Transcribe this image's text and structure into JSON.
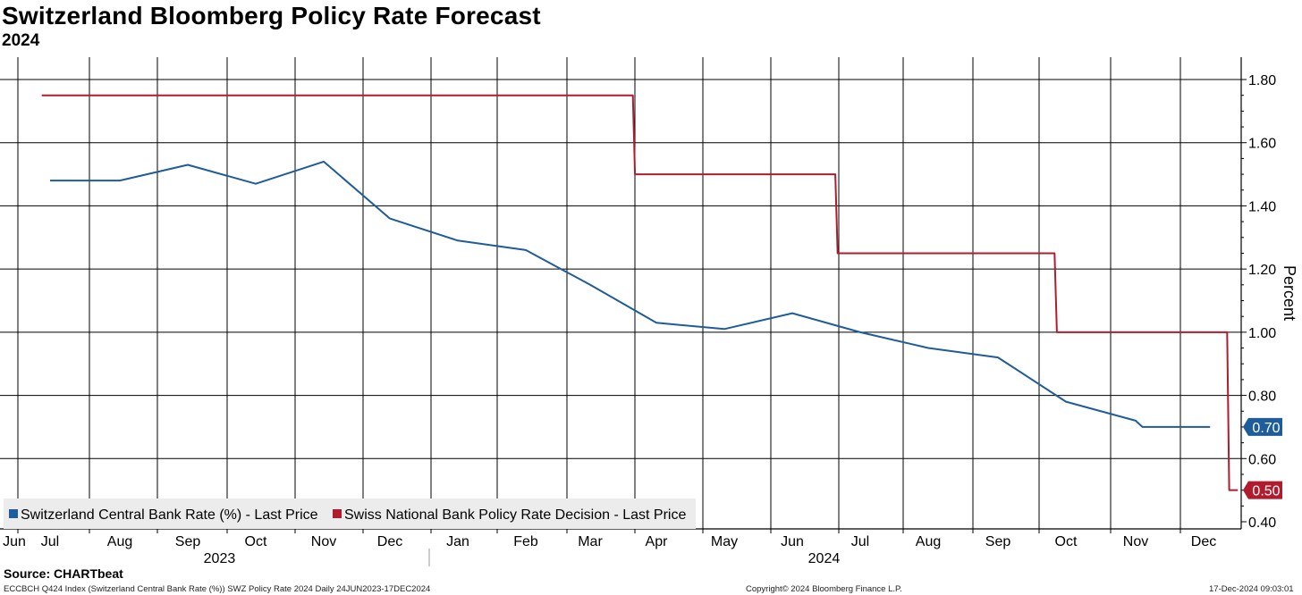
{
  "header": {
    "title": "Switzerland Bloomberg Policy Rate Forecast",
    "subtitle": "2024"
  },
  "footer": {
    "source": "Source: CHARTbeat",
    "index_info": "ECCBCH Q424 Index (Switzerland Central Bank Rate (%)) SWZ Policy Rate 2024  Daily 24JUN2023-17DEC2024",
    "copyright": "Copyright© 2024 Bloomberg Finance L.P.",
    "timestamp": "17-Dec-2024 09:03:01"
  },
  "chart_data": {
    "type": "line",
    "title": "Switzerland Bloomberg Policy Rate Forecast",
    "subtitle": "2024",
    "ylabel": "Percent",
    "ylim": [
      0.4,
      1.85
    ],
    "yticks": [
      "1.80",
      "1.60",
      "1.40",
      "1.20",
      "1.00",
      "0.80",
      "0.60",
      "0.40"
    ],
    "x_range": [
      "2023-06-24",
      "2024-12-17"
    ],
    "x_month_labels": [
      {
        "label": "Jun",
        "date": "2023-06-01"
      },
      {
        "label": "Jul",
        "date": "2023-07-01"
      },
      {
        "label": "Aug",
        "date": "2023-08-01"
      },
      {
        "label": "Sep",
        "date": "2023-09-01"
      },
      {
        "label": "Oct",
        "date": "2023-10-01"
      },
      {
        "label": "Nov",
        "date": "2023-11-01"
      },
      {
        "label": "Dec",
        "date": "2023-12-01"
      },
      {
        "label": "Jan",
        "date": "2024-01-01"
      },
      {
        "label": "Feb",
        "date": "2024-02-01"
      },
      {
        "label": "Mar",
        "date": "2024-03-01"
      },
      {
        "label": "Apr",
        "date": "2024-04-01"
      },
      {
        "label": "May",
        "date": "2024-05-01"
      },
      {
        "label": "Jun",
        "date": "2024-06-01"
      },
      {
        "label": "Jul",
        "date": "2024-07-01"
      },
      {
        "label": "Aug",
        "date": "2024-08-01"
      },
      {
        "label": "Sep",
        "date": "2024-09-01"
      },
      {
        "label": "Oct",
        "date": "2024-10-01"
      },
      {
        "label": "Nov",
        "date": "2024-11-01"
      },
      {
        "label": "Dec",
        "date": "2024-12-01"
      }
    ],
    "x_year_labels": [
      {
        "label": "2023",
        "date": "2023-09-15"
      },
      {
        "label": "2024",
        "date": "2024-06-15"
      }
    ],
    "year_divider_date": "2024-01-01",
    "series": [
      {
        "name": "Switzerland Central Bank Rate (%) - Last Price",
        "color": "#1f5c9a",
        "last_value": "0.70",
        "points": [
          [
            "2023-07-01",
            1.48
          ],
          [
            "2023-08-01",
            1.48
          ],
          [
            "2023-09-01",
            1.53
          ],
          [
            "2023-10-01",
            1.47
          ],
          [
            "2023-11-01",
            1.54
          ],
          [
            "2023-12-01",
            1.36
          ],
          [
            "2024-01-01",
            1.29
          ],
          [
            "2024-02-01",
            1.26
          ],
          [
            "2024-03-01",
            1.15
          ],
          [
            "2024-04-01",
            1.03
          ],
          [
            "2024-05-01",
            1.01
          ],
          [
            "2024-06-01",
            1.06
          ],
          [
            "2024-07-01",
            1.0
          ],
          [
            "2024-08-01",
            0.95
          ],
          [
            "2024-09-01",
            0.92
          ],
          [
            "2024-10-01",
            0.78
          ],
          [
            "2024-11-01",
            0.72
          ],
          [
            "2024-11-04",
            0.7
          ],
          [
            "2024-12-04",
            0.7
          ]
        ]
      },
      {
        "name": "Swiss National Bank Policy Rate Decision - Last Price",
        "color": "#b01c2e",
        "last_value": "0.50",
        "points": [
          [
            "2023-06-24",
            1.75
          ],
          [
            "2024-03-21",
            1.75
          ],
          [
            "2024-03-22",
            1.5
          ],
          [
            "2024-06-20",
            1.5
          ],
          [
            "2024-06-21",
            1.25
          ],
          [
            "2024-09-26",
            1.25
          ],
          [
            "2024-09-27",
            1.0
          ],
          [
            "2024-12-12",
            1.0
          ],
          [
            "2024-12-13",
            0.5
          ],
          [
            "2024-12-17",
            0.5
          ]
        ]
      }
    ],
    "legend_position": "bottom-left"
  }
}
